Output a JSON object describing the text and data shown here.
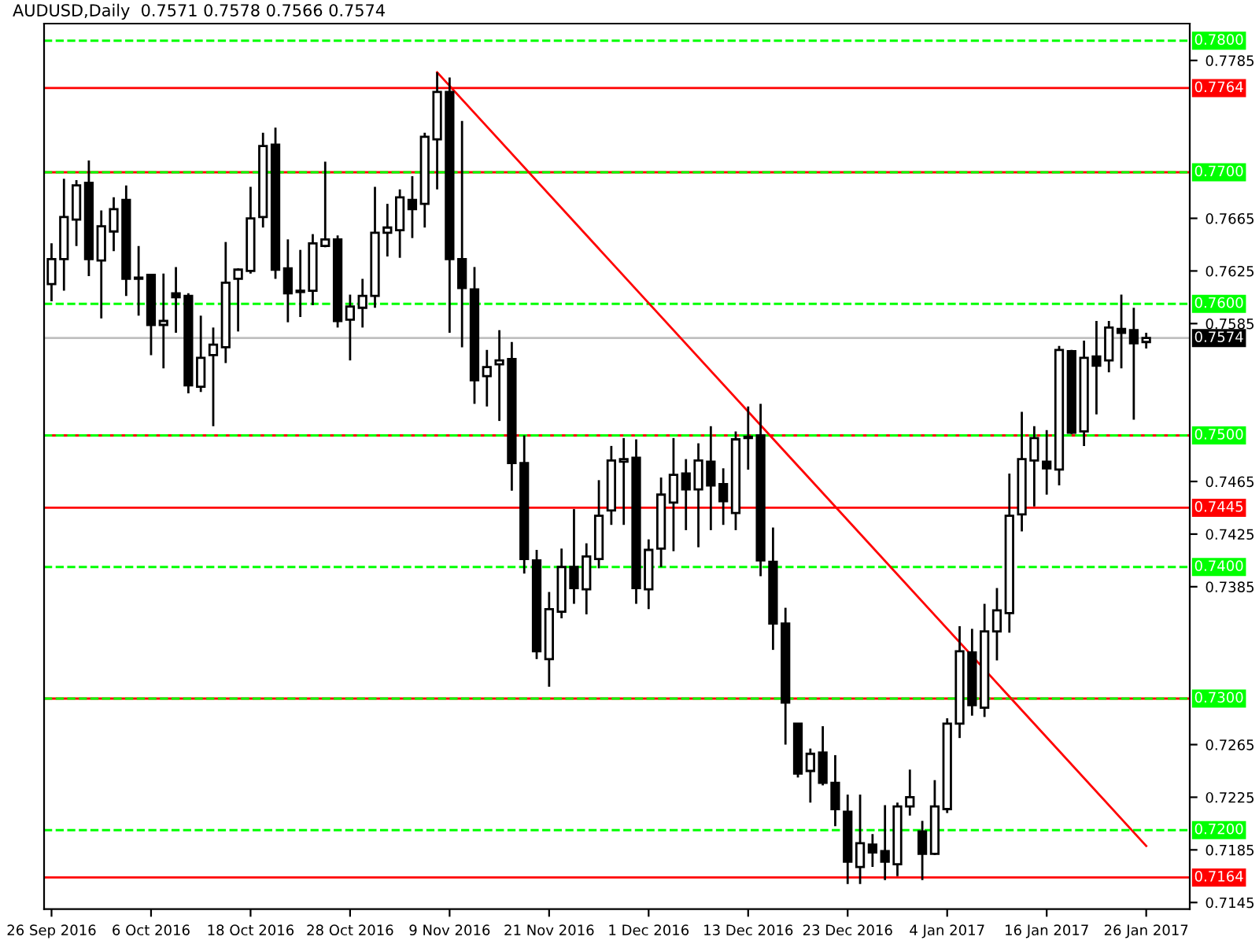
{
  "chart_data": {
    "type": "candlestick",
    "title": "AUDUSD,Daily  0.7571 0.7578 0.7566 0.7574",
    "categories": [
      "26 Sep 2016",
      null,
      null,
      null,
      null,
      null,
      null,
      null,
      "6 Oct 2016",
      null,
      null,
      null,
      null,
      null,
      null,
      null,
      "18 Oct 2016",
      null,
      null,
      null,
      null,
      null,
      null,
      null,
      "28 Oct 2016",
      null,
      null,
      null,
      null,
      null,
      null,
      null,
      "9 Nov 2016",
      null,
      null,
      null,
      null,
      null,
      null,
      null,
      "21 Nov 2016",
      null,
      null,
      null,
      null,
      null,
      null,
      null,
      "1 Dec 2016",
      null,
      null,
      null,
      null,
      null,
      null,
      null,
      "13 Dec 2016",
      null,
      null,
      null,
      null,
      null,
      null,
      null,
      "23 Dec 2016",
      null,
      null,
      null,
      null,
      null,
      null,
      null,
      "4 Jan 2017",
      null,
      null,
      null,
      null,
      null,
      null,
      null,
      "16 Jan 2017",
      null,
      null,
      null,
      null,
      null,
      null,
      null,
      "26 Jan 2017"
    ],
    "ohlc": [
      [
        0.7615,
        0.7646,
        0.7602,
        0.7634
      ],
      [
        0.7634,
        0.7695,
        0.761,
        0.7666
      ],
      [
        0.7664,
        0.7694,
        0.7644,
        0.769
      ],
      [
        0.7692,
        0.7709,
        0.7621,
        0.7634
      ],
      [
        0.7633,
        0.7671,
        0.7589,
        0.7659
      ],
      [
        0.7655,
        0.7681,
        0.764,
        0.7672
      ],
      [
        0.7679,
        0.769,
        0.7606,
        0.7619
      ],
      [
        0.762,
        0.7644,
        0.7591,
        0.7619
      ],
      [
        0.7622,
        0.7622,
        0.7561,
        0.7584
      ],
      [
        0.7584,
        0.7623,
        0.7551,
        0.7587
      ],
      [
        0.7608,
        0.7628,
        0.7578,
        0.7605
      ],
      [
        0.7606,
        0.7608,
        0.7532,
        0.7538
      ],
      [
        0.7537,
        0.7591,
        0.7533,
        0.7559
      ],
      [
        0.7561,
        0.7582,
        0.7507,
        0.7569
      ],
      [
        0.7567,
        0.7647,
        0.7555,
        0.7616
      ],
      [
        0.7619,
        0.7627,
        0.7579,
        0.7626
      ],
      [
        0.7625,
        0.7689,
        0.7623,
        0.7665
      ],
      [
        0.7666,
        0.773,
        0.7658,
        0.772
      ],
      [
        0.7721,
        0.7734,
        0.7619,
        0.7626
      ],
      [
        0.7627,
        0.7649,
        0.7586,
        0.7608
      ],
      [
        0.761,
        0.7641,
        0.759,
        0.7609
      ],
      [
        0.761,
        0.7653,
        0.7599,
        0.7646
      ],
      [
        0.7644,
        0.7708,
        0.7643,
        0.7649
      ],
      [
        0.7649,
        0.7652,
        0.7582,
        0.7587
      ],
      [
        0.7588,
        0.7607,
        0.7557,
        0.7598
      ],
      [
        0.7597,
        0.7619,
        0.7582,
        0.7606
      ],
      [
        0.7606,
        0.7689,
        0.7597,
        0.7654
      ],
      [
        0.7654,
        0.7676,
        0.7636,
        0.7658
      ],
      [
        0.7656,
        0.7687,
        0.7635,
        0.7681
      ],
      [
        0.7679,
        0.7697,
        0.765,
        0.7672
      ],
      [
        0.7676,
        0.773,
        0.7658,
        0.7727
      ],
      [
        0.7725,
        0.7776,
        0.7687,
        0.7761
      ],
      [
        0.7761,
        0.7772,
        0.7578,
        0.7634
      ],
      [
        0.7634,
        0.7739,
        0.7567,
        0.7612
      ],
      [
        0.7611,
        0.7628,
        0.7524,
        0.7542
      ],
      [
        0.7545,
        0.7565,
        0.7522,
        0.7552
      ],
      [
        0.7554,
        0.758,
        0.7511,
        0.7557
      ],
      [
        0.7558,
        0.7571,
        0.7458,
        0.7479
      ],
      [
        0.7479,
        0.75,
        0.7395,
        0.7406
      ],
      [
        0.7405,
        0.7413,
        0.733,
        0.7336
      ],
      [
        0.733,
        0.7381,
        0.7309,
        0.7368
      ],
      [
        0.7366,
        0.7414,
        0.7361,
        0.74
      ],
      [
        0.74,
        0.7444,
        0.7372,
        0.7384
      ],
      [
        0.7383,
        0.7418,
        0.7364,
        0.7408
      ],
      [
        0.7406,
        0.7466,
        0.7399,
        0.7439
      ],
      [
        0.7443,
        0.7492,
        0.7432,
        0.7481
      ],
      [
        0.748,
        0.7498,
        0.7432,
        0.7482
      ],
      [
        0.7483,
        0.7497,
        0.7372,
        0.7384
      ],
      [
        0.7383,
        0.7421,
        0.7368,
        0.7413
      ],
      [
        0.7414,
        0.7468,
        0.74,
        0.7455
      ],
      [
        0.7449,
        0.7498,
        0.7412,
        0.747
      ],
      [
        0.7471,
        0.7482,
        0.7428,
        0.7459
      ],
      [
        0.7459,
        0.7494,
        0.7415,
        0.7481
      ],
      [
        0.748,
        0.7507,
        0.7428,
        0.7462
      ],
      [
        0.7463,
        0.7475,
        0.7432,
        0.745
      ],
      [
        0.7441,
        0.7503,
        0.7428,
        0.7497
      ],
      [
        0.7498,
        0.7522,
        0.7474,
        0.7499
      ],
      [
        0.75,
        0.7524,
        0.7393,
        0.7405
      ],
      [
        0.7404,
        0.743,
        0.7337,
        0.7357
      ],
      [
        0.7357,
        0.7369,
        0.7265,
        0.7297
      ],
      [
        0.7281,
        0.7281,
        0.724,
        0.7243
      ],
      [
        0.7245,
        0.7262,
        0.7221,
        0.7258
      ],
      [
        0.7259,
        0.7279,
        0.7234,
        0.7236
      ],
      [
        0.7236,
        0.7257,
        0.7203,
        0.7216
      ],
      [
        0.7214,
        0.7227,
        0.7159,
        0.7176
      ],
      [
        0.7172,
        0.7227,
        0.7159,
        0.719
      ],
      [
        0.7189,
        0.7197,
        0.7172,
        0.7183
      ],
      [
        0.7184,
        0.7219,
        0.7162,
        0.7176
      ],
      [
        0.7174,
        0.7221,
        0.7165,
        0.7218
      ],
      [
        0.7218,
        0.7246,
        0.7211,
        0.7225
      ],
      [
        0.7199,
        0.7207,
        0.7162,
        0.7182
      ],
      [
        0.7182,
        0.7238,
        0.7181,
        0.7218
      ],
      [
        0.7216,
        0.7285,
        0.7213,
        0.7281
      ],
      [
        0.7281,
        0.7355,
        0.727,
        0.7336
      ],
      [
        0.7335,
        0.7353,
        0.7287,
        0.7295
      ],
      [
        0.7293,
        0.7372,
        0.7286,
        0.7351
      ],
      [
        0.7351,
        0.7384,
        0.7329,
        0.7367
      ],
      [
        0.7365,
        0.7471,
        0.735,
        0.7439
      ],
      [
        0.744,
        0.7518,
        0.7427,
        0.7482
      ],
      [
        0.7481,
        0.7507,
        0.7446,
        0.7498
      ],
      [
        0.748,
        0.7504,
        0.7455,
        0.7475
      ],
      [
        0.7474,
        0.7568,
        0.7462,
        0.7565
      ],
      [
        0.7564,
        0.7565,
        0.7501,
        0.7502
      ],
      [
        0.7503,
        0.7572,
        0.7492,
        0.7559
      ],
      [
        0.756,
        0.7587,
        0.7516,
        0.7553
      ],
      [
        0.7557,
        0.7587,
        0.7548,
        0.7582
      ],
      [
        0.7581,
        0.7607,
        0.7551,
        0.7578
      ],
      [
        0.758,
        0.7597,
        0.7512,
        0.757
      ],
      [
        0.7571,
        0.7578,
        0.7566,
        0.7574
      ]
    ],
    "series": [
      {
        "type": "line",
        "color": "#ff0000",
        "values": [
          null,
          null,
          null,
          null,
          null,
          null,
          null,
          null,
          null,
          null,
          null,
          null,
          null,
          null,
          null,
          null,
          null,
          null,
          null,
          null,
          null,
          null,
          null,
          null,
          null,
          null,
          null,
          null,
          null,
          null,
          null,
          0.7776,
          null,
          null,
          null,
          null,
          null,
          null,
          null,
          null,
          null,
          null,
          null,
          null,
          null,
          null,
          null,
          null,
          null,
          null,
          null,
          null,
          null,
          null,
          null,
          null,
          null,
          null,
          null,
          null,
          null,
          null,
          null,
          null,
          null,
          null,
          null,
          null,
          null,
          null,
          null,
          null,
          null,
          null,
          null,
          null,
          null,
          null,
          null,
          null,
          null,
          null,
          null,
          null,
          null,
          null,
          null,
          null,
          0.7188
        ]
      }
    ],
    "ylim": [
      0.714,
      0.7813
    ],
    "yticks": [
      0.7145,
      0.7185,
      0.7225,
      0.7265,
      0.7385,
      0.7425,
      0.7465,
      0.7585,
      0.7625,
      0.7665,
      0.7785
    ],
    "ref_lines": [
      {
        "axis": "y",
        "value": 0.78,
        "label": "0.7800",
        "color": "#00ff00",
        "line_style": "dashed"
      },
      {
        "axis": "y",
        "value": 0.76,
        "label": "0.7600",
        "color": "#00ff00",
        "line_style": "dashed"
      },
      {
        "axis": "y",
        "value": 0.74,
        "label": "0.7400",
        "color": "#00ff00",
        "line_style": "dashed"
      },
      {
        "axis": "y",
        "value": 0.72,
        "label": "0.7200",
        "color": "#00ff00",
        "line_style": "dashed"
      },
      {
        "axis": "y",
        "value": 0.77,
        "label": null,
        "color": "#ff0000",
        "line_style": "solid"
      },
      {
        "axis": "y",
        "value": 0.75,
        "label": null,
        "color": "#ff0000",
        "line_style": "solid"
      },
      {
        "axis": "y",
        "value": 0.73,
        "label": null,
        "color": "#ff0000",
        "line_style": "solid"
      },
      {
        "axis": "y",
        "value": 0.77,
        "label": "0.7700",
        "color": "#00ff00",
        "line_style": "dashed"
      },
      {
        "axis": "y",
        "value": 0.75,
        "label": "0.7500",
        "color": "#00ff00",
        "line_style": "dashed"
      },
      {
        "axis": "y",
        "value": 0.73,
        "label": "0.7300",
        "color": "#00ff00",
        "line_style": "dashed"
      },
      {
        "axis": "y",
        "value": 0.7764,
        "label": "0.7764",
        "color": "#ff0000",
        "line_style": "solid"
      },
      {
        "axis": "y",
        "value": 0.7445,
        "label": "0.7445",
        "color": "#ff0000",
        "line_style": "solid"
      },
      {
        "axis": "y",
        "value": 0.7164,
        "label": "0.7164",
        "color": "#ff0000",
        "line_style": "solid"
      },
      {
        "axis": "y",
        "value": 0.7574,
        "label": "0.7574",
        "color": "#c0c0c0",
        "line_style": "solid"
      }
    ],
    "grid": false
  }
}
